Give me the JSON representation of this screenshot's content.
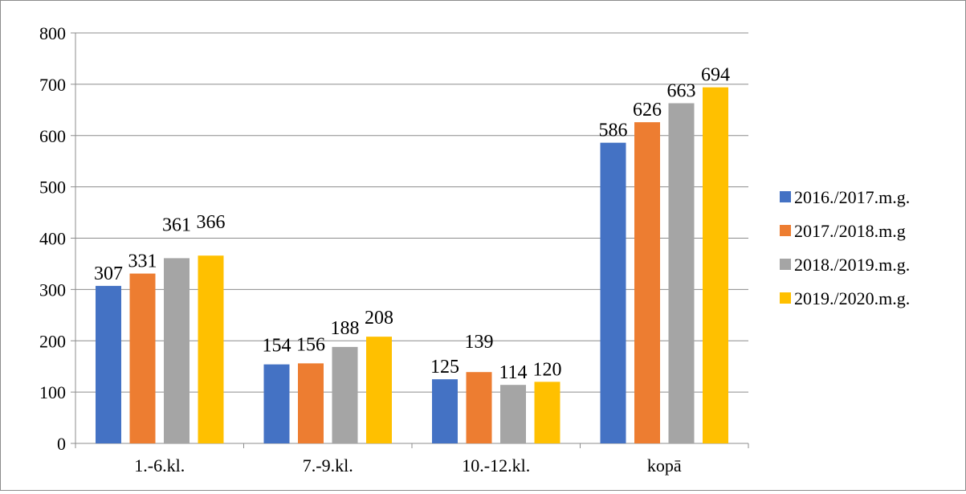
{
  "chart_data": {
    "type": "bar",
    "title": "",
    "xlabel": "",
    "ylabel": "",
    "categories": [
      "1.-6.kl.",
      "7.-9.kl.",
      "10.-12.kl.",
      "kopā"
    ],
    "ylim": [
      0,
      800
    ],
    "yticks": [
      0,
      100,
      200,
      300,
      400,
      500,
      600,
      700,
      800
    ],
    "grid": true,
    "legend_position": "right",
    "series": [
      {
        "name": "2016./2017.m.g.",
        "color": "#4472c4",
        "values": [
          307,
          154,
          125,
          586
        ]
      },
      {
        "name": "2017./2018.m.g",
        "color": "#ed7d31",
        "values": [
          331,
          156,
          139,
          626
        ]
      },
      {
        "name": "2018./2019.m.g.",
        "color": "#a5a5a5",
        "values": [
          361,
          188,
          114,
          663
        ]
      },
      {
        "name": "2019./2020.m.g.",
        "color": "#ffc000",
        "values": [
          366,
          208,
          120,
          694
        ]
      }
    ]
  }
}
